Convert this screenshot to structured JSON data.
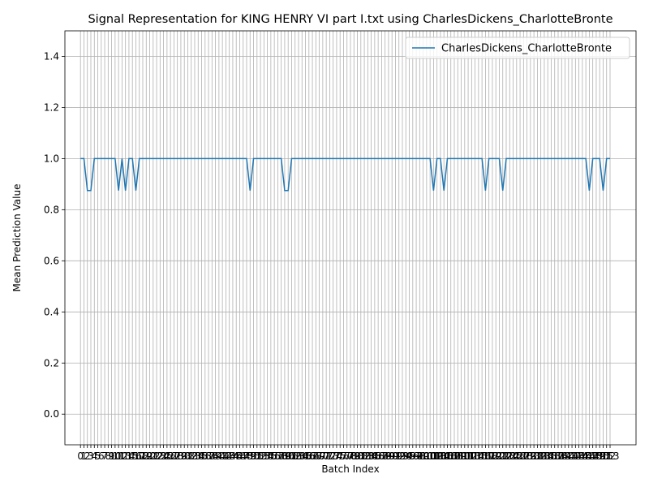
{
  "chart_data": {
    "type": "line",
    "title": "Signal Representation for KING HENRY VI part I.txt using CharlesDickens_CharlotteBronte",
    "xlabel": "Batch Index",
    "ylabel": "Mean Prediction Value",
    "x": [
      0,
      1,
      2,
      3,
      4,
      5,
      6,
      7,
      8,
      9,
      10,
      11,
      12,
      13,
      14,
      15,
      16,
      17,
      18,
      19,
      20,
      21,
      22,
      23,
      24,
      25,
      26,
      27,
      28,
      29,
      30,
      31,
      32,
      33,
      34,
      35,
      36,
      37,
      38,
      39,
      40,
      41,
      42,
      43,
      44,
      45,
      46,
      47,
      48,
      49,
      50,
      51,
      52,
      53,
      54,
      55,
      56,
      57,
      58,
      59,
      60,
      61,
      62,
      63,
      64,
      65,
      66,
      67,
      68,
      69,
      70,
      71,
      72,
      73,
      74,
      75,
      76,
      77,
      78,
      79,
      80,
      81,
      82,
      83,
      84,
      85,
      86,
      87,
      88,
      89,
      90,
      91,
      92,
      93,
      94,
      95,
      96,
      97,
      98,
      99,
      100,
      101,
      102,
      103,
      104,
      105,
      106,
      107,
      108,
      109,
      110,
      111,
      112,
      113,
      114,
      115,
      116,
      117,
      118,
      119,
      120,
      121,
      122,
      123,
      124,
      125,
      126,
      127,
      128,
      129,
      130,
      131,
      132,
      133,
      134,
      135,
      136,
      137,
      138,
      139,
      140,
      141,
      142,
      143,
      144,
      145,
      146,
      147,
      148,
      149,
      150,
      151,
      152,
      153
    ],
    "series": [
      {
        "name": "CharlesDickens_CharlotteBronte",
        "color": "#1f77b4",
        "values": [
          1,
          1,
          0.875,
          0.875,
          1,
          1,
          1,
          1,
          1,
          1,
          1,
          0.875,
          1,
          0.875,
          1,
          1,
          0.875,
          1,
          1,
          1,
          1,
          1,
          1,
          1,
          1,
          1,
          1,
          1,
          1,
          1,
          1,
          1,
          1,
          1,
          1,
          1,
          1,
          1,
          1,
          1,
          1,
          1,
          1,
          1,
          1,
          1,
          1,
          1,
          1,
          0.875,
          1,
          1,
          1,
          1,
          1,
          1,
          1,
          1,
          1,
          0.875,
          0.875,
          1,
          1,
          1,
          1,
          1,
          1,
          1,
          1,
          1,
          1,
          1,
          1,
          1,
          1,
          1,
          1,
          1,
          1,
          1,
          1,
          1,
          1,
          1,
          1,
          1,
          1,
          1,
          1,
          1,
          1,
          1,
          1,
          1,
          1,
          1,
          1,
          1,
          1,
          1,
          1,
          1,
          0.875,
          1,
          1,
          0.875,
          1,
          1,
          1,
          1,
          1,
          1,
          1,
          1,
          1,
          1,
          1,
          0.875,
          1,
          1,
          1,
          1,
          0.875,
          1,
          1,
          1,
          1,
          1,
          1,
          1,
          1,
          1,
          1,
          1,
          1,
          1,
          1,
          1,
          1,
          1,
          1,
          1,
          1,
          1,
          1,
          1,
          1,
          0.875,
          1,
          1,
          1,
          0.875,
          1,
          1
        ]
      }
    ],
    "xlim": [
      -4.5,
      160.5
    ],
    "xticks": [
      0,
      1,
      2,
      3,
      4,
      5,
      6,
      7,
      8,
      9,
      10,
      11,
      12,
      13,
      14,
      15,
      16,
      17,
      18,
      19,
      20,
      21,
      22,
      23,
      24,
      25,
      26,
      27,
      28,
      29,
      30,
      31,
      32,
      33,
      34,
      35,
      36,
      37,
      38,
      39,
      40,
      41,
      42,
      43,
      44,
      45,
      46,
      47,
      48,
      49,
      50,
      51,
      52,
      53,
      54,
      55,
      56,
      57,
      58,
      59,
      60,
      61,
      62,
      63,
      64,
      65,
      66,
      67,
      68,
      69,
      70,
      71,
      72,
      73,
      74,
      75,
      76,
      77,
      78,
      79,
      80,
      81,
      82,
      83,
      84,
      85,
      86,
      87,
      88,
      89,
      90,
      91,
      92,
      93,
      94,
      95,
      96,
      97,
      98,
      99,
      100,
      101,
      102,
      103,
      104,
      105,
      106,
      107,
      108,
      109,
      110,
      111,
      112,
      113,
      114,
      115,
      116,
      117,
      118,
      119,
      120,
      121,
      122,
      123,
      124,
      125,
      126,
      127,
      128,
      129,
      130,
      131,
      132,
      133,
      134,
      135,
      136,
      137,
      138,
      139,
      140,
      141,
      142,
      143,
      144,
      145,
      146,
      147,
      148,
      149,
      150,
      151,
      152,
      153
    ],
    "ylim": [
      -0.12,
      1.5
    ],
    "yticks": [
      {
        "value": 0,
        "label": "0.0"
      },
      {
        "value": 0.2,
        "label": "0.2"
      },
      {
        "value": 0.4,
        "label": "0.4"
      },
      {
        "value": 0.6,
        "label": "0.6"
      },
      {
        "value": 0.8,
        "label": "0.8"
      },
      {
        "value": 1,
        "label": "1.0"
      },
      {
        "value": 1.2,
        "label": "1.2"
      },
      {
        "value": 1.4,
        "label": "1.4"
      }
    ],
    "grid": true,
    "legend": "upper right"
  }
}
